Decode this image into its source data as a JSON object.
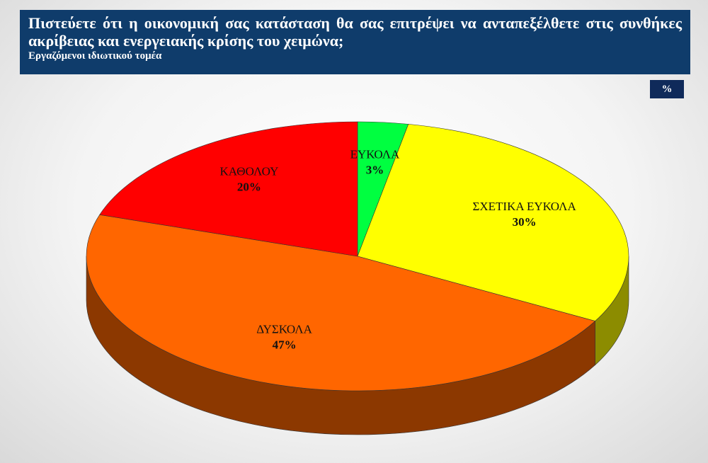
{
  "header": {
    "title": "Πιστεύετε ότι η οικονομική σας κατάσταση θα σας επιτρέψει να ανταπεξέλθετε στις συνθήκες ακρίβειας και ενεργειακής κρίσης του χειμώνα;",
    "subtitle": "Εργαζόμενοι ιδιωτικού τομέα",
    "badge": "%"
  },
  "chart_data": {
    "type": "pie",
    "categories": [
      "ΕΥΚΟΛΑ",
      "ΣΧΕΤΙΚΑ ΕΥΚΟΛΑ",
      "ΔΥΣΚΟΛΑ",
      "ΚΑΘΟΛΟΥ"
    ],
    "values": [
      3,
      30,
      47,
      20
    ],
    "value_labels": [
      "3%",
      "30%",
      "47%",
      "20%"
    ],
    "colors": [
      "#00ff40",
      "#ffff00",
      "#ff6600",
      "#ff0000"
    ]
  }
}
